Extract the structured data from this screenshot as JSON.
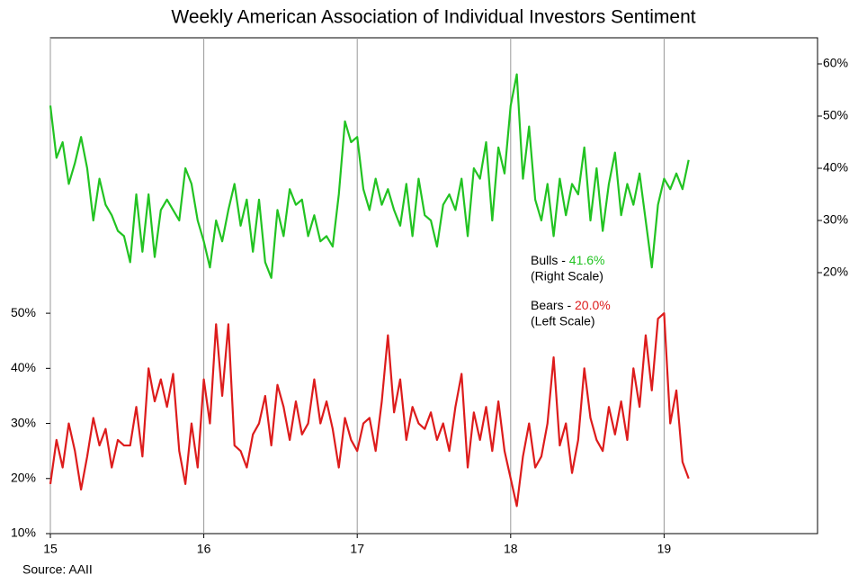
{
  "chart_data": {
    "type": "line",
    "title": "Weekly American Association of Individual Investors Sentiment",
    "x": [
      15,
      15.04,
      15.08,
      15.12,
      15.16,
      15.2,
      15.24,
      15.28,
      15.32,
      15.36,
      15.4,
      15.44,
      15.48,
      15.52,
      15.56,
      15.6,
      15.64,
      15.68,
      15.72,
      15.76,
      15.8,
      15.84,
      15.88,
      15.92,
      15.96,
      16,
      16.04,
      16.08,
      16.12,
      16.16,
      16.2,
      16.24,
      16.28,
      16.32,
      16.36,
      16.4,
      16.44,
      16.48,
      16.52,
      16.56,
      16.6,
      16.64,
      16.68,
      16.72,
      16.76,
      16.8,
      16.84,
      16.88,
      16.92,
      16.96,
      17,
      17.04,
      17.08,
      17.12,
      17.16,
      17.2,
      17.24,
      17.28,
      17.32,
      17.36,
      17.4,
      17.44,
      17.48,
      17.52,
      17.56,
      17.6,
      17.64,
      17.68,
      17.72,
      17.76,
      17.8,
      17.84,
      17.88,
      17.92,
      17.96,
      18,
      18.04,
      18.08,
      18.12,
      18.16,
      18.2,
      18.24,
      18.28,
      18.32,
      18.36,
      18.4,
      18.44,
      18.48,
      18.52,
      18.56,
      18.6,
      18.64,
      18.68,
      18.72,
      18.76,
      18.8,
      18.84,
      18.88,
      18.92,
      18.96,
      19,
      19.04,
      19.08,
      19.12,
      19.16
    ],
    "series": [
      {
        "name": "Bulls",
        "color": "#22c322",
        "axis": "y2",
        "values": [
          52,
          42,
          45,
          37,
          41,
          46,
          40,
          30,
          38,
          33,
          31,
          28,
          27,
          22,
          35,
          24,
          35,
          23,
          32,
          34,
          32,
          30,
          40,
          37,
          30,
          26,
          21,
          30,
          26,
          32,
          37,
          29,
          34,
          24,
          34,
          22,
          19,
          32,
          27,
          36,
          33,
          34,
          27,
          31,
          26,
          27,
          25,
          35,
          49,
          45,
          46,
          36,
          32,
          38,
          33,
          36,
          32,
          29,
          37,
          27,
          38,
          31,
          30,
          25,
          33,
          35,
          32,
          38,
          27,
          40,
          38,
          45,
          30,
          44,
          39,
          52,
          58,
          38,
          48,
          34,
          30,
          37,
          27,
          38,
          31,
          37,
          35,
          44,
          30,
          40,
          28,
          37,
          43,
          31,
          37,
          33,
          39,
          30,
          21,
          33,
          38,
          36,
          39,
          36,
          41.6
        ]
      },
      {
        "name": "Bears",
        "color": "#dd1c1c",
        "values": [
          19,
          27,
          22,
          30,
          25,
          18,
          24,
          31,
          26,
          29,
          22,
          27,
          26,
          26,
          33,
          24,
          40,
          34,
          38,
          33,
          39,
          25,
          19,
          30,
          22,
          38,
          30,
          48,
          35,
          48,
          26,
          25,
          22,
          28,
          30,
          35,
          26,
          37,
          33,
          27,
          34,
          28,
          30,
          38,
          30,
          34,
          29,
          22,
          31,
          27,
          25,
          30,
          31,
          25,
          34,
          46,
          32,
          38,
          27,
          33,
          30,
          29,
          32,
          27,
          30,
          25,
          33,
          39,
          22,
          32,
          27,
          33,
          25,
          34,
          25,
          20,
          15,
          24,
          30,
          22,
          24,
          30,
          42,
          26,
          30,
          21,
          27,
          40,
          31,
          27,
          25,
          33,
          28,
          34,
          27,
          40,
          33,
          46,
          36,
          49,
          50,
          30,
          36,
          23,
          20.0
        ]
      }
    ],
    "xlim": [
      15,
      20
    ],
    "xticks": [
      15,
      16,
      17,
      18,
      19
    ],
    "ylim": [
      10,
      100
    ],
    "yticks": [
      {
        "value": 10,
        "label": "10%"
      },
      {
        "value": 20,
        "label": "20%"
      },
      {
        "value": 30,
        "label": "30%"
      },
      {
        "value": 40,
        "label": "40%"
      },
      {
        "value": 50,
        "label": "50%"
      }
    ],
    "y2lim": [
      -30,
      65
    ],
    "y2ticks": [
      {
        "value": 20,
        "label": "20%"
      },
      {
        "value": 30,
        "label": "30%"
      },
      {
        "value": 40,
        "label": "40%"
      },
      {
        "value": 50,
        "label": "50%"
      },
      {
        "value": 60,
        "label": "60%"
      }
    ],
    "grid": true,
    "annotations": {
      "bulls_label": "Bulls - ",
      "bulls_value": "41.6%",
      "bulls_scale": "(Right Scale)",
      "bears_label": "Bears - ",
      "bears_value": "20.0%",
      "bears_scale": "(Left Scale)"
    },
    "source": "Source: AAII"
  }
}
